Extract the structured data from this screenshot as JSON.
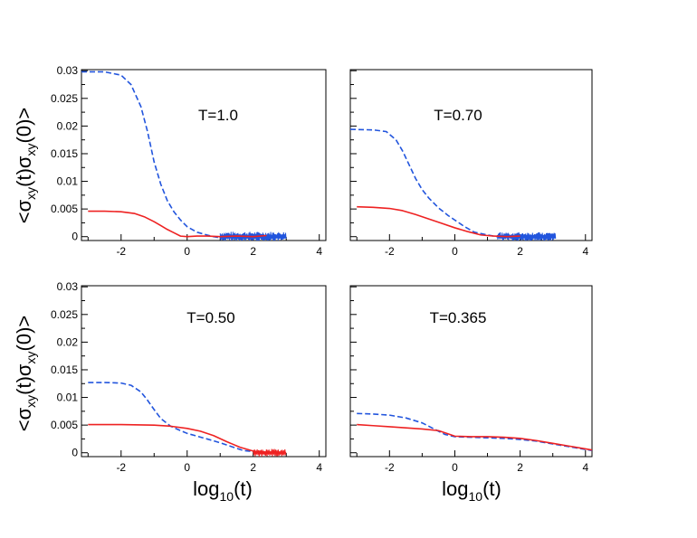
{
  "figure": {
    "ylabel": {
      "pre": "<σ",
      "s1": "xy",
      "mid": "(t)σ",
      "s2": "xy",
      "post": "(0)>"
    },
    "xlabel": {
      "pre": "log",
      "sub": "10",
      "post": "(t)"
    }
  },
  "chart_data": [
    {
      "type": "line",
      "title": "T=1.0",
      "xlabel": "",
      "ylabel": "<σxy(t)σxy(0)>",
      "xlim": [
        -3.2,
        4.2
      ],
      "ylim": [
        -0.0007,
        0.0302
      ],
      "xticks": [
        -2,
        0,
        2,
        4
      ],
      "xtick_labels": [
        "-2",
        "0",
        "2",
        "4"
      ],
      "yticks": [
        0,
        0.005,
        0.01,
        0.015,
        0.02,
        0.025,
        0.03
      ],
      "ytick_labels": [
        "0",
        "0.005",
        "0.01",
        "0.015",
        "0.02",
        "0.025",
        "0.03"
      ],
      "show_x_labels": true,
      "show_y_labels": true,
      "series": [
        {
          "name": "dashed",
          "color": "#2255dd",
          "dash": true,
          "x": [
            -3.2,
            -2.5,
            -2.0,
            -1.7,
            -1.4,
            -1.2,
            -1.0,
            -0.8,
            -0.6,
            -0.4,
            -0.2,
            0.0,
            0.3,
            0.6,
            0.8,
            1.0
          ],
          "y": [
            0.0298,
            0.0298,
            0.0292,
            0.0275,
            0.0235,
            0.019,
            0.0135,
            0.0095,
            0.0065,
            0.0045,
            0.003,
            0.0018,
            0.0008,
            0.0003,
            0.0,
            -0.0002
          ],
          "noise": {
            "x_start": 1.0,
            "x_end": 3.0,
            "amp": 0.0009,
            "step": 0.015
          }
        },
        {
          "name": "solid",
          "color": "#ee2222",
          "dash": false,
          "x": [
            -3.0,
            -2.5,
            -2.0,
            -1.6,
            -1.3,
            -1.0,
            -0.8,
            -0.6,
            -0.4,
            -0.2,
            0.0,
            0.3,
            0.6,
            1.0,
            1.5,
            2.0,
            2.4
          ],
          "y": [
            0.0046,
            0.0046,
            0.0045,
            0.0042,
            0.0036,
            0.0027,
            0.002,
            0.0013,
            0.0007,
            0.0001,
            0.0,
            0.0001,
            0.0001,
            0.0,
            0.0001,
            0.0,
            0.0002
          ]
        }
      ]
    },
    {
      "type": "line",
      "title": "T=0.70",
      "xlabel": "",
      "ylabel": "",
      "xlim": [
        -3.2,
        4.2
      ],
      "ylim": [
        -0.0007,
        0.0302
      ],
      "xticks": [
        -2,
        0,
        2,
        4
      ],
      "xtick_labels": [
        "-2",
        "0",
        "2",
        "4"
      ],
      "yticks": [
        0,
        0.005,
        0.01,
        0.015,
        0.02,
        0.025,
        0.03
      ],
      "ytick_labels": [
        "0",
        "0.005",
        "0.01",
        "0.015",
        "0.02",
        "0.025",
        "0.03"
      ],
      "show_x_labels": true,
      "show_y_labels": false,
      "series": [
        {
          "name": "dashed",
          "color": "#2255dd",
          "dash": true,
          "x": [
            -3.2,
            -2.5,
            -2.1,
            -1.8,
            -1.6,
            -1.4,
            -1.2,
            -1.0,
            -0.8,
            -0.5,
            -0.2,
            0.0,
            0.3,
            0.6,
            1.0,
            1.3
          ],
          "y": [
            0.0194,
            0.0193,
            0.019,
            0.0175,
            0.0155,
            0.013,
            0.0105,
            0.0085,
            0.007,
            0.0052,
            0.0038,
            0.003,
            0.0018,
            0.0008,
            0.0003,
            0.0
          ],
          "noise": {
            "x_start": 1.3,
            "x_end": 3.1,
            "amp": 0.0008,
            "step": 0.015
          }
        },
        {
          "name": "solid",
          "color": "#ee2222",
          "dash": false,
          "x": [
            -3.0,
            -2.5,
            -2.0,
            -1.6,
            -1.2,
            -0.8,
            -0.4,
            0.0,
            0.4,
            0.8,
            1.2,
            1.6,
            2.0
          ],
          "y": [
            0.0054,
            0.0053,
            0.0051,
            0.0047,
            0.004,
            0.0032,
            0.0024,
            0.0016,
            0.0009,
            0.0003,
            0.0001,
            0.0,
            0.0001
          ]
        }
      ]
    },
    {
      "type": "line",
      "title": "T=0.50",
      "xlabel": "log10(t)",
      "ylabel": "<σxy(t)σxy(0)>",
      "xlim": [
        -3.2,
        4.2
      ],
      "ylim": [
        -0.0007,
        0.0302
      ],
      "xticks": [
        -2,
        0,
        2,
        4
      ],
      "xtick_labels": [
        "-2",
        "0",
        "2",
        "4"
      ],
      "yticks": [
        0,
        0.005,
        0.01,
        0.015,
        0.02,
        0.025,
        0.03
      ],
      "ytick_labels": [
        "0",
        "0.005",
        "0.01",
        "0.015",
        "0.02",
        "0.025",
        "0.03"
      ],
      "show_x_labels": true,
      "show_y_labels": true,
      "series": [
        {
          "name": "dashed",
          "color": "#2255dd",
          "dash": true,
          "x": [
            -3.0,
            -2.5,
            -2.0,
            -1.7,
            -1.4,
            -1.2,
            -1.0,
            -0.8,
            -0.5,
            -0.2,
            0.0,
            0.3,
            0.6,
            1.0,
            1.4,
            1.7,
            2.0,
            2.3,
            2.6
          ],
          "y": [
            0.0127,
            0.0127,
            0.0126,
            0.0122,
            0.011,
            0.0095,
            0.0078,
            0.0062,
            0.0048,
            0.004,
            0.0035,
            0.003,
            0.0025,
            0.0018,
            0.001,
            0.0004,
            0.0002,
            0.0,
            0.0
          ]
        },
        {
          "name": "solid",
          "color": "#ee2222",
          "dash": false,
          "x": [
            -3.0,
            -2.0,
            -1.0,
            -0.5,
            0.0,
            0.4,
            0.8,
            1.2,
            1.6,
            2.0,
            2.4,
            2.8,
            3.0
          ],
          "y": [
            0.0051,
            0.0051,
            0.005,
            0.0048,
            0.0044,
            0.0039,
            0.0031,
            0.002,
            0.001,
            0.0003,
            0.0001,
            0.0,
            0.0
          ],
          "noise": {
            "x_start": 2.0,
            "x_end": 3.0,
            "amp": 0.0007,
            "step": 0.02
          }
        }
      ]
    },
    {
      "type": "line",
      "title": "T=0.365",
      "xlabel": "log10(t)",
      "ylabel": "",
      "xlim": [
        -3.2,
        4.2
      ],
      "ylim": [
        -0.0007,
        0.0302
      ],
      "xticks": [
        -2,
        0,
        2,
        4
      ],
      "xtick_labels": [
        "-2",
        "0",
        "2",
        "4"
      ],
      "yticks": [
        0,
        0.005,
        0.01,
        0.015,
        0.02,
        0.025,
        0.03
      ],
      "ytick_labels": [
        "0",
        "0.005",
        "0.01",
        "0.015",
        "0.02",
        "0.025",
        "0.03"
      ],
      "show_x_labels": true,
      "show_y_labels": false,
      "series": [
        {
          "name": "dashed",
          "color": "#2255dd",
          "dash": true,
          "x": [
            -3.0,
            -2.5,
            -2.0,
            -1.5,
            -1.0,
            -0.6,
            -0.3,
            0.0,
            0.5,
            1.0,
            1.5,
            2.0,
            2.5,
            3.0,
            3.5,
            4.0,
            4.2
          ],
          "y": [
            0.0071,
            0.007,
            0.0068,
            0.0063,
            0.0054,
            0.0042,
            0.0033,
            0.0029,
            0.0028,
            0.0027,
            0.0026,
            0.0024,
            0.0021,
            0.0016,
            0.0011,
            0.0006,
            0.0004
          ]
        },
        {
          "name": "solid",
          "color": "#ee2222",
          "dash": false,
          "x": [
            -3.0,
            -2.5,
            -2.0,
            -1.5,
            -1.0,
            -0.5,
            -0.2,
            0.0,
            0.5,
            1.0,
            1.5,
            2.0,
            2.5,
            3.0,
            3.5,
            4.0,
            4.2
          ],
          "y": [
            0.0051,
            0.0049,
            0.0047,
            0.0045,
            0.0043,
            0.004,
            0.0034,
            0.003,
            0.0029,
            0.0029,
            0.0028,
            0.0026,
            0.0022,
            0.0017,
            0.0012,
            0.0007,
            0.0005
          ]
        }
      ]
    }
  ]
}
